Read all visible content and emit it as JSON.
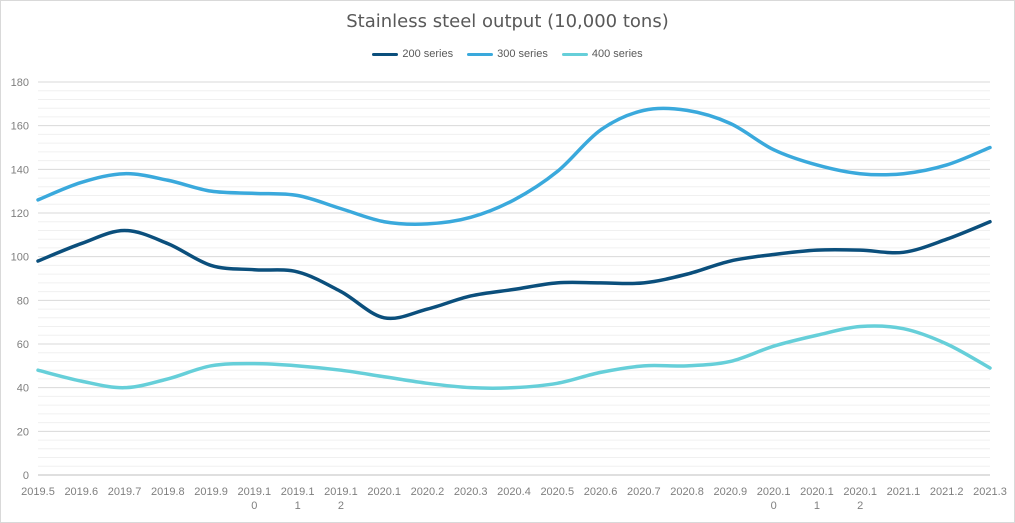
{
  "chart_data": {
    "type": "line",
    "title": "Stainless steel output (10,000 tons)",
    "categories": [
      "2019.5",
      "2019.6",
      "2019.7",
      "2019.8",
      "2019.9",
      "2019.10",
      "2019.11",
      "2019.12",
      "2020.1",
      "2020.2",
      "2020.3",
      "2020.4",
      "2020.5",
      "2020.6",
      "2020.7",
      "2020.8",
      "2020.9",
      "2020.10",
      "2020.11",
      "2020.12",
      "2021.1",
      "2021.2",
      "2021.3"
    ],
    "category_label_lines": [
      [
        "2019.5"
      ],
      [
        "2019.6"
      ],
      [
        "2019.7"
      ],
      [
        "2019.8"
      ],
      [
        "2019.9"
      ],
      [
        "2019.1",
        "0"
      ],
      [
        "2019.1",
        "1"
      ],
      [
        "2019.1",
        "2"
      ],
      [
        "2020.1"
      ],
      [
        "2020.2"
      ],
      [
        "2020.3"
      ],
      [
        "2020.4"
      ],
      [
        "2020.5"
      ],
      [
        "2020.6"
      ],
      [
        "2020.7"
      ],
      [
        "2020.8"
      ],
      [
        "2020.9"
      ],
      [
        "2020.1",
        "0"
      ],
      [
        "2020.1",
        "1"
      ],
      [
        "2020.1",
        "2"
      ],
      [
        "2021.1"
      ],
      [
        "2021.2"
      ],
      [
        "2021.3"
      ]
    ],
    "series": [
      {
        "name": "200 series",
        "color": "#0b4f7c",
        "values": [
          98,
          106,
          112,
          106,
          96,
          94,
          93,
          84,
          72,
          76,
          82,
          85,
          88,
          88,
          88,
          92,
          98,
          101,
          103,
          103,
          102,
          108,
          116
        ]
      },
      {
        "name": "300 series",
        "color": "#3aa9dc",
        "values": [
          126,
          134,
          138,
          135,
          130,
          129,
          128,
          122,
          116,
          115,
          118,
          126,
          139,
          158,
          167,
          167,
          161,
          149,
          142,
          138,
          138,
          142,
          150
        ]
      },
      {
        "name": "400 series",
        "color": "#66cfd9",
        "values": [
          48,
          43,
          40,
          44,
          50,
          51,
          50,
          48,
          45,
          42,
          40,
          40,
          42,
          47,
          50,
          50,
          52,
          59,
          64,
          68,
          67,
          60,
          49
        ]
      }
    ],
    "ylim": [
      0,
      180
    ],
    "yticks": [
      0,
      20,
      40,
      60,
      80,
      100,
      120,
      140,
      160,
      180
    ],
    "minor_grid": true,
    "legend_position": "top",
    "xlabel": "",
    "ylabel": ""
  }
}
